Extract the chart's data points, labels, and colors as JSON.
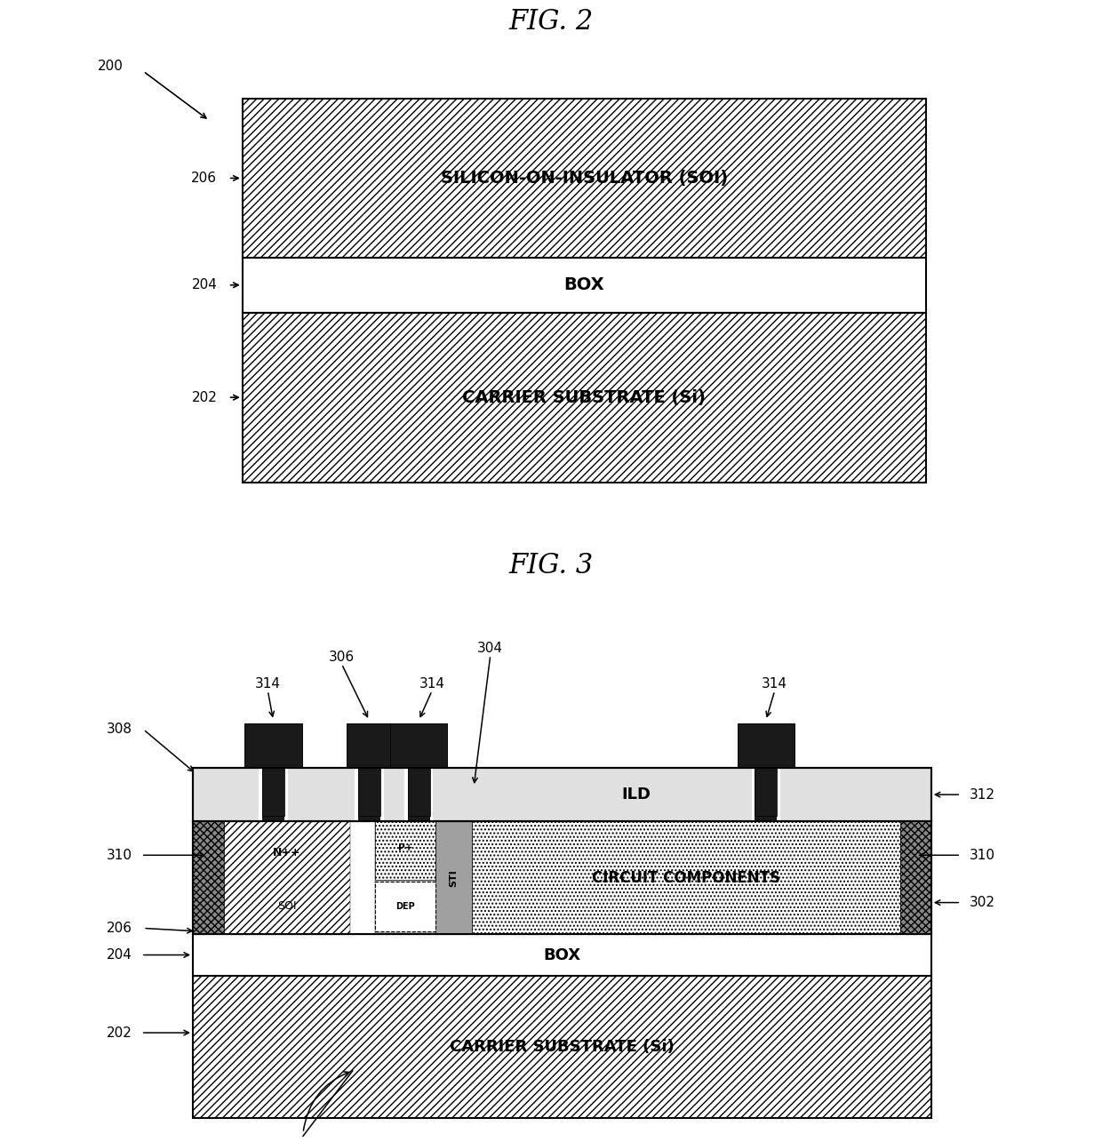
{
  "fig2_title": "FIG. 2",
  "fig3_title": "FIG. 3",
  "bg_color": "#ffffff",
  "black": "#000000",
  "contact_color": "#1a1a1a",
  "gray_border": "#999999",
  "ild_gray": "#d8d8d8",
  "soi_layer_gray": "#b0b0b0",
  "fig2": {
    "soi_label": "SILICON-ON-INSULATOR (SOI)",
    "box_label": "BOX",
    "cs_label": "CARRIER SUBSTRATE (Si)"
  },
  "fig3": {
    "box_label": "BOX",
    "cs_label": "CARRIER SUBSTRATE (Si)",
    "ild_label": "ILD",
    "circuit_label": "CIRCUIT COMPONENTS",
    "npp_label": "N++",
    "pp_label": "P+",
    "dep_label": "DEP",
    "sti_label": "STI",
    "soi_label": "SOI"
  }
}
